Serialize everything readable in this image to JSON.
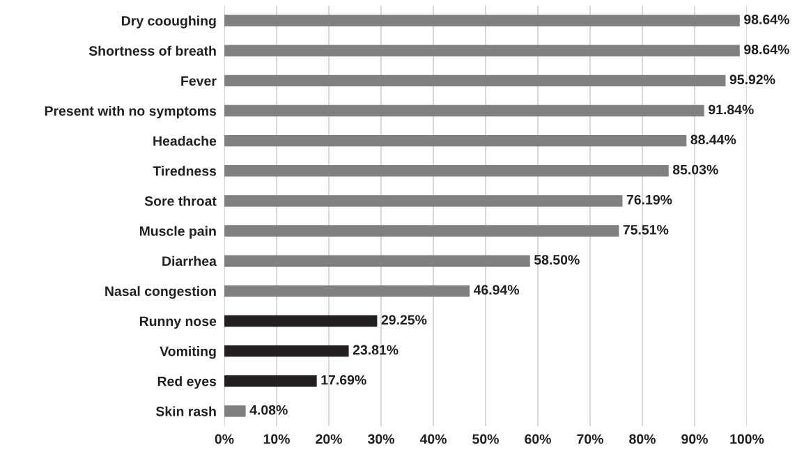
{
  "chart_data": {
    "type": "bar",
    "orientation": "horizontal",
    "categories": [
      "Dry cooughing",
      "Shortness of breath",
      "Fever",
      "Present with no symptoms",
      "Headache",
      "Tiredness",
      "Sore throat",
      "Muscle pain",
      "Diarrhea",
      "Nasal congestion",
      "Runny nose",
      "Vomiting",
      "Red eyes",
      "Skin rash"
    ],
    "values": [
      98.64,
      98.64,
      95.92,
      91.84,
      88.44,
      85.03,
      76.19,
      75.51,
      58.5,
      46.94,
      29.25,
      23.81,
      17.69,
      4.08
    ],
    "colors": [
      "#808080",
      "#808080",
      "#808080",
      "#808080",
      "#808080",
      "#808080",
      "#808080",
      "#808080",
      "#808080",
      "#808080",
      "#231f20",
      "#231f20",
      "#231f20",
      "#808080"
    ],
    "value_labels": [
      "98.64%",
      "98.64%",
      "95.92%",
      "91.84%",
      "88.44%",
      "85.03%",
      "76.19%",
      "75.51%",
      "58.50%",
      "46.94%",
      "29.25%",
      "23.81%",
      "17.69%",
      "4.08%"
    ],
    "xlim": [
      0,
      100
    ],
    "xticks": [
      {
        "value": 0,
        "label": "0%"
      },
      {
        "value": 10,
        "label": "10%"
      },
      {
        "value": 20,
        "label": "20%"
      },
      {
        "value": 30,
        "label": "30%"
      },
      {
        "value": 40,
        "label": "40%"
      },
      {
        "value": 50,
        "label": "50%"
      },
      {
        "value": 60,
        "label": "60%"
      },
      {
        "value": 70,
        "label": "70%"
      },
      {
        "value": 80,
        "label": "80%"
      },
      {
        "value": 90,
        "label": "90%"
      },
      {
        "value": 100,
        "label": "100%"
      }
    ],
    "grid": "x",
    "legend": false
  }
}
